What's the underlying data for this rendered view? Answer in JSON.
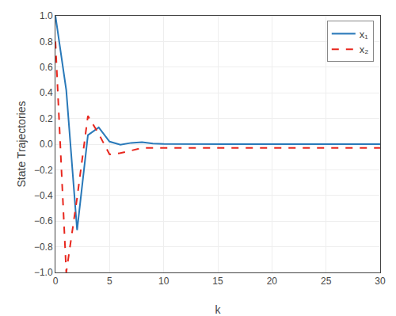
{
  "chart_data": {
    "type": "line",
    "xlabel": "k",
    "ylabel": "State Trajectories",
    "x": [
      0,
      1,
      2,
      3,
      4,
      5,
      6,
      7,
      8,
      9,
      10,
      11,
      12,
      13,
      14,
      15,
      16,
      17,
      18,
      19,
      20,
      21,
      22,
      23,
      24,
      25,
      26,
      27,
      28,
      29,
      30
    ],
    "series": [
      {
        "name": "x₁",
        "color": "#2979b9",
        "line_style": "solid",
        "values": [
          1.0,
          0.42,
          -0.67,
          0.07,
          0.13,
          0.02,
          -0.005,
          0.01,
          0.015,
          0.005,
          0.002,
          0.001,
          0.0,
          0.0,
          0.0,
          0.0,
          0.0,
          0.0,
          0.0,
          0.0,
          0.0,
          0.0,
          0.0,
          0.0,
          0.0,
          0.0,
          0.0,
          0.0,
          0.0,
          0.0,
          0.0
        ]
      },
      {
        "name": "x₂",
        "color": "#e8271e",
        "line_style": "dashed",
        "values": [
          0.8,
          -1.0,
          -0.42,
          0.22,
          0.08,
          -0.08,
          -0.07,
          -0.05,
          -0.03,
          -0.03,
          -0.03,
          -0.03,
          -0.03,
          -0.03,
          -0.03,
          -0.03,
          -0.03,
          -0.03,
          -0.03,
          -0.03,
          -0.03,
          -0.03,
          -0.03,
          -0.03,
          -0.03,
          -0.03,
          -0.03,
          -0.03,
          -0.03,
          -0.03,
          -0.03
        ]
      }
    ],
    "xlim": [
      0,
      30
    ],
    "ylim": [
      -1,
      1
    ],
    "xticks": [
      0,
      5,
      10,
      15,
      20,
      25,
      30
    ],
    "yticks": [
      {
        "value": -1,
        "label": "−1.0"
      },
      {
        "value": -0.8,
        "label": "−0.8"
      },
      {
        "value": -0.6,
        "label": "−0.6"
      },
      {
        "value": -0.4,
        "label": "−0.4"
      },
      {
        "value": -0.2,
        "label": "−0.2"
      },
      {
        "value": 0,
        "label": "0.0"
      },
      0.2,
      0.4,
      0.6,
      0.8,
      {
        "value": 1.0,
        "label": "1.0"
      }
    ],
    "grid": true,
    "legend": "upper right"
  }
}
